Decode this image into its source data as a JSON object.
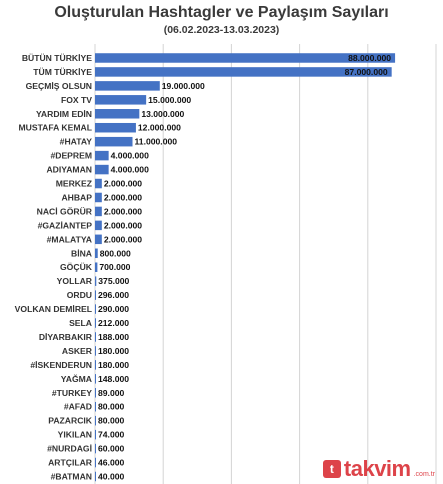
{
  "title": "Oluşturulan Hashtagler ve Paylaşım Sayıları",
  "subtitle": "(06.02.2023-13.03.2023)",
  "watermark": {
    "icon": "t",
    "text": "takvim",
    "suffix": ".com.tr"
  },
  "colors": {
    "bar": "#4472c4",
    "grid": "#d4d4d4",
    "text": "#333333"
  },
  "chart_data": {
    "type": "bar",
    "orientation": "horizontal",
    "title": "Oluşturulan Hashtagler ve Paylaşım Sayıları",
    "subtitle": "(06.02.2023-13.03.2023)",
    "xlim": [
      0,
      100000000
    ],
    "grid": true,
    "categories": [
      "BÜTÜN TÜRKİYE",
      "TÜM TÜRKİYE",
      "GEÇMİŞ OLSUN",
      "FOX TV",
      "YARDIM EDİN",
      "MUSTAFA KEMAL",
      "#HATAY",
      "#DEPREM",
      "ADIYAMAN",
      "MERKEZ",
      "AHBAP",
      "NACİ GÖRÜR",
      "#GAZİANTEP",
      "#MALATYA",
      "BİNA",
      "GÖÇÜK",
      "YOLLAR",
      "ORDU",
      "VOLKAN DEMİREL",
      "SELA",
      "DİYARBAKIR",
      "ASKER",
      "#İSKENDERUN",
      "YAĞMA",
      "#TURKEY",
      "#AFAD",
      "PAZARCIK",
      "YIKILAN",
      "#NURDAGİ",
      "ARTÇILAR",
      "#BATMAN"
    ],
    "values": [
      88000000,
      87000000,
      19000000,
      15000000,
      13000000,
      12000000,
      11000000,
      4000000,
      4000000,
      2000000,
      2000000,
      2000000,
      2000000,
      2000000,
      800000,
      700000,
      375000,
      296000,
      290000,
      212000,
      188000,
      180000,
      180000,
      148000,
      89000,
      80000,
      80000,
      74000,
      60000,
      46000,
      40000
    ],
    "value_labels": [
      "88.000.000",
      "87.000.000",
      "19.000.000",
      "15.000.000",
      "13.000.000",
      "12.000.000",
      "11.000.000",
      "4.000.000",
      "4.000.000",
      "2.000.000",
      "2.000.000",
      "2.000.000",
      "2.000.000",
      "2.000.000",
      "800.000",
      "700.000",
      "375.000",
      "296.000",
      "290.000",
      "212.000",
      "188.000",
      "180.000",
      "180.000",
      "148.000",
      "89.000",
      "80.000",
      "80.000",
      "74.000",
      "60.000",
      "46.000",
      "40.000"
    ]
  }
}
